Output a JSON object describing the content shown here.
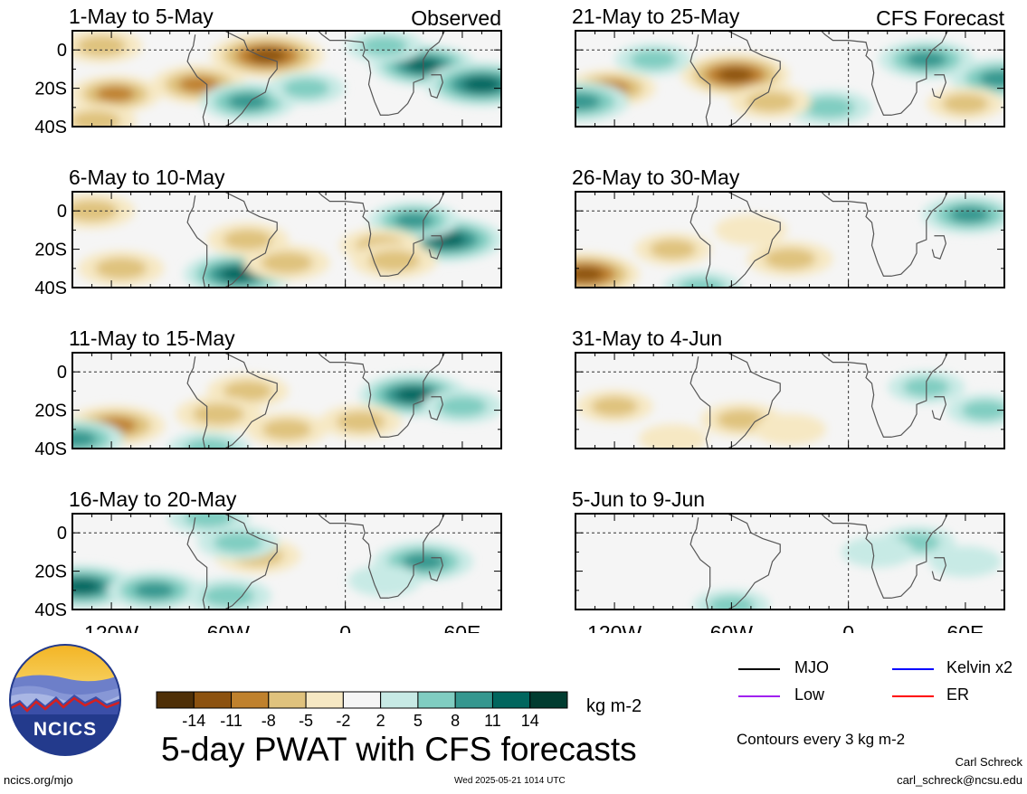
{
  "chart_data": {
    "type": "heatmap",
    "title": "5-day PWAT with CFS forecasts",
    "variable": "precipitable water anomaly",
    "units": "kg m-2",
    "x_ticks": [
      "120W",
      "60W",
      "0",
      "60E"
    ],
    "y_ticks": [
      "0",
      "20S",
      "40S"
    ],
    "lon_range": [
      -140,
      80
    ],
    "lat_range": [
      -40,
      10
    ],
    "color_levels": [
      -14,
      -11,
      -8,
      -5,
      -2,
      2,
      5,
      8,
      11,
      14
    ],
    "color_scale": [
      "#4e2f07",
      "#8c5210",
      "#bf812d",
      "#dfc27d",
      "#f6e8c3",
      "#f5f5f5",
      "#c7eae5",
      "#80cdc1",
      "#35978f",
      "#01665e",
      "#003c30"
    ],
    "panels": [
      {
        "label": "1-May to 5-May",
        "tag": "Observed",
        "column": "left",
        "blobs": [
          {
            "lon": -40,
            "lat": -3,
            "value": -13
          },
          {
            "lon": -75,
            "lat": -18,
            "value": -9
          },
          {
            "lon": -50,
            "lat": -27,
            "value": 9
          },
          {
            "lon": -118,
            "lat": -23,
            "value": -8
          },
          {
            "lon": -128,
            "lat": -37,
            "value": -6
          },
          {
            "lon": 40,
            "lat": -8,
            "value": 11
          },
          {
            "lon": 70,
            "lat": -18,
            "value": 13
          },
          {
            "lon": -125,
            "lat": 2,
            "value": -6
          },
          {
            "lon": 20,
            "lat": 2,
            "value": 5
          },
          {
            "lon": -20,
            "lat": -20,
            "value": 5
          }
        ]
      },
      {
        "label": "6-May to 10-May",
        "tag": "",
        "column": "left",
        "blobs": [
          {
            "lon": -55,
            "lat": -33,
            "value": 12
          },
          {
            "lon": 52,
            "lat": -15,
            "value": 13
          },
          {
            "lon": 35,
            "lat": -5,
            "value": 8
          },
          {
            "lon": -30,
            "lat": -27,
            "value": -7
          },
          {
            "lon": -115,
            "lat": -30,
            "value": -7
          },
          {
            "lon": -50,
            "lat": -15,
            "value": -6
          },
          {
            "lon": -130,
            "lat": 0,
            "value": -7
          },
          {
            "lon": 18,
            "lat": -18,
            "value": -6
          },
          {
            "lon": 25,
            "lat": -26,
            "value": -7
          }
        ]
      },
      {
        "label": "11-May to 15-May",
        "tag": "",
        "column": "left",
        "blobs": [
          {
            "lon": 35,
            "lat": -12,
            "value": 12
          },
          {
            "lon": -118,
            "lat": -28,
            "value": -10
          },
          {
            "lon": -50,
            "lat": -10,
            "value": -6
          },
          {
            "lon": -65,
            "lat": -22,
            "value": -7
          },
          {
            "lon": -30,
            "lat": -30,
            "value": -6
          },
          {
            "lon": 8,
            "lat": -26,
            "value": -6
          },
          {
            "lon": -138,
            "lat": -35,
            "value": 9
          },
          {
            "lon": -70,
            "lat": -40,
            "value": 6
          },
          {
            "lon": 60,
            "lat": -18,
            "value": 6
          }
        ]
      },
      {
        "label": "16-May to 20-May",
        "tag": "",
        "column": "left",
        "blobs": [
          {
            "lon": -135,
            "lat": -28,
            "value": 12
          },
          {
            "lon": -98,
            "lat": -30,
            "value": 9
          },
          {
            "lon": -45,
            "lat": -12,
            "value": -7
          },
          {
            "lon": 40,
            "lat": -15,
            "value": 10
          },
          {
            "lon": -55,
            "lat": -5,
            "value": 6
          },
          {
            "lon": -60,
            "lat": -33,
            "value": 7
          },
          {
            "lon": -70,
            "lat": 8,
            "value": 6
          },
          {
            "lon": 20,
            "lat": -25,
            "value": 4
          }
        ]
      },
      {
        "label": "21-May to 25-May",
        "tag": "CFS Forecast",
        "column": "right",
        "blobs": [
          {
            "lon": -58,
            "lat": -13,
            "value": -12
          },
          {
            "lon": -122,
            "lat": -20,
            "value": -8
          },
          {
            "lon": -138,
            "lat": -27,
            "value": 10
          },
          {
            "lon": 40,
            "lat": -5,
            "value": 9
          },
          {
            "lon": -10,
            "lat": -30,
            "value": 7
          },
          {
            "lon": -40,
            "lat": -27,
            "value": -6
          },
          {
            "lon": 78,
            "lat": -15,
            "value": 10
          },
          {
            "lon": 60,
            "lat": -28,
            "value": -5
          },
          {
            "lon": -100,
            "lat": -5,
            "value": 5
          }
        ]
      },
      {
        "label": "26-May to 30-May",
        "tag": "",
        "column": "right",
        "blobs": [
          {
            "lon": -135,
            "lat": -33,
            "value": -12
          },
          {
            "lon": -90,
            "lat": -20,
            "value": -5
          },
          {
            "lon": -30,
            "lat": -25,
            "value": -7
          },
          {
            "lon": 62,
            "lat": -2,
            "value": 9
          },
          {
            "lon": -75,
            "lat": -40,
            "value": 5
          },
          {
            "lon": -50,
            "lat": -10,
            "value": -4
          }
        ]
      },
      {
        "label": "31-May to 4-Jun",
        "tag": "",
        "column": "right",
        "blobs": [
          {
            "lon": -120,
            "lat": -18,
            "value": -5
          },
          {
            "lon": -55,
            "lat": -25,
            "value": -6
          },
          {
            "lon": -30,
            "lat": -30,
            "value": -4
          },
          {
            "lon": 40,
            "lat": -8,
            "value": 5
          },
          {
            "lon": 70,
            "lat": -20,
            "value": 5
          },
          {
            "lon": -90,
            "lat": -35,
            "value": -3
          }
        ]
      },
      {
        "label": "5-Jun to 9-Jun",
        "tag": "",
        "column": "right",
        "blobs": [
          {
            "lon": -60,
            "lat": -38,
            "value": 5
          },
          {
            "lon": 35,
            "lat": -5,
            "value": 5
          },
          {
            "lon": 15,
            "lat": -10,
            "value": 4
          },
          {
            "lon": 60,
            "lat": -15,
            "value": 4
          }
        ]
      }
    ]
  },
  "colorbar": {
    "tick_labels": [
      "-14",
      "-11",
      "-8",
      "-5",
      "-2",
      "2",
      "5",
      "8",
      "11",
      "14"
    ],
    "units": "kg m-2"
  },
  "legend": {
    "items": [
      {
        "label": "MJO",
        "color": "#000000"
      },
      {
        "label": "Kelvin x2",
        "color": "#0000ff"
      },
      {
        "label": "Low",
        "color": "#a020f0"
      },
      {
        "label": "ER",
        "color": "#ff0000"
      }
    ],
    "contour_note": "Contours every 3 kg m-2"
  },
  "logo": {
    "text": "NCICS"
  },
  "footer": {
    "website": "ncics.org/mjo",
    "timestamp": "Wed 2025-05-21 1014 UTC",
    "author": "Carl Schreck",
    "email": "carl_schreck@ncsu.edu"
  }
}
